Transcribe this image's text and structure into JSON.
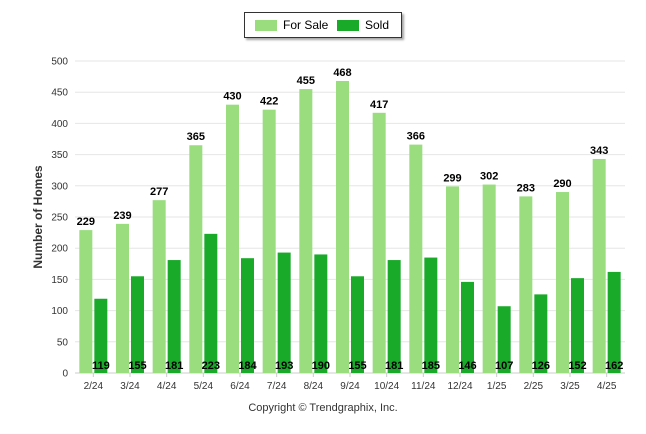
{
  "chart_data": {
    "type": "bar",
    "categories": [
      "2/24",
      "3/24",
      "4/24",
      "5/24",
      "6/24",
      "7/24",
      "8/24",
      "9/24",
      "10/24",
      "11/24",
      "12/24",
      "1/25",
      "2/25",
      "3/25",
      "4/25"
    ],
    "series": [
      {
        "name": "For Sale",
        "color": "#99dd7f",
        "values": [
          229,
          239,
          277,
          365,
          430,
          422,
          455,
          468,
          417,
          366,
          299,
          302,
          283,
          290,
          343
        ]
      },
      {
        "name": "Sold",
        "color": "#1aaa2a",
        "values": [
          119,
          155,
          181,
          223,
          184,
          193,
          190,
          155,
          181,
          185,
          146,
          107,
          126,
          152,
          162
        ]
      }
    ],
    "ylabel": "Number of Homes",
    "xlabel": "",
    "ylim": [
      0,
      500
    ],
    "yticks": [
      0,
      50,
      100,
      150,
      200,
      250,
      300,
      350,
      400,
      450,
      500
    ],
    "grid": true,
    "legend_position": "top-center"
  },
  "footer": {
    "copyright": "Copyright © Trendgraphix, Inc."
  }
}
